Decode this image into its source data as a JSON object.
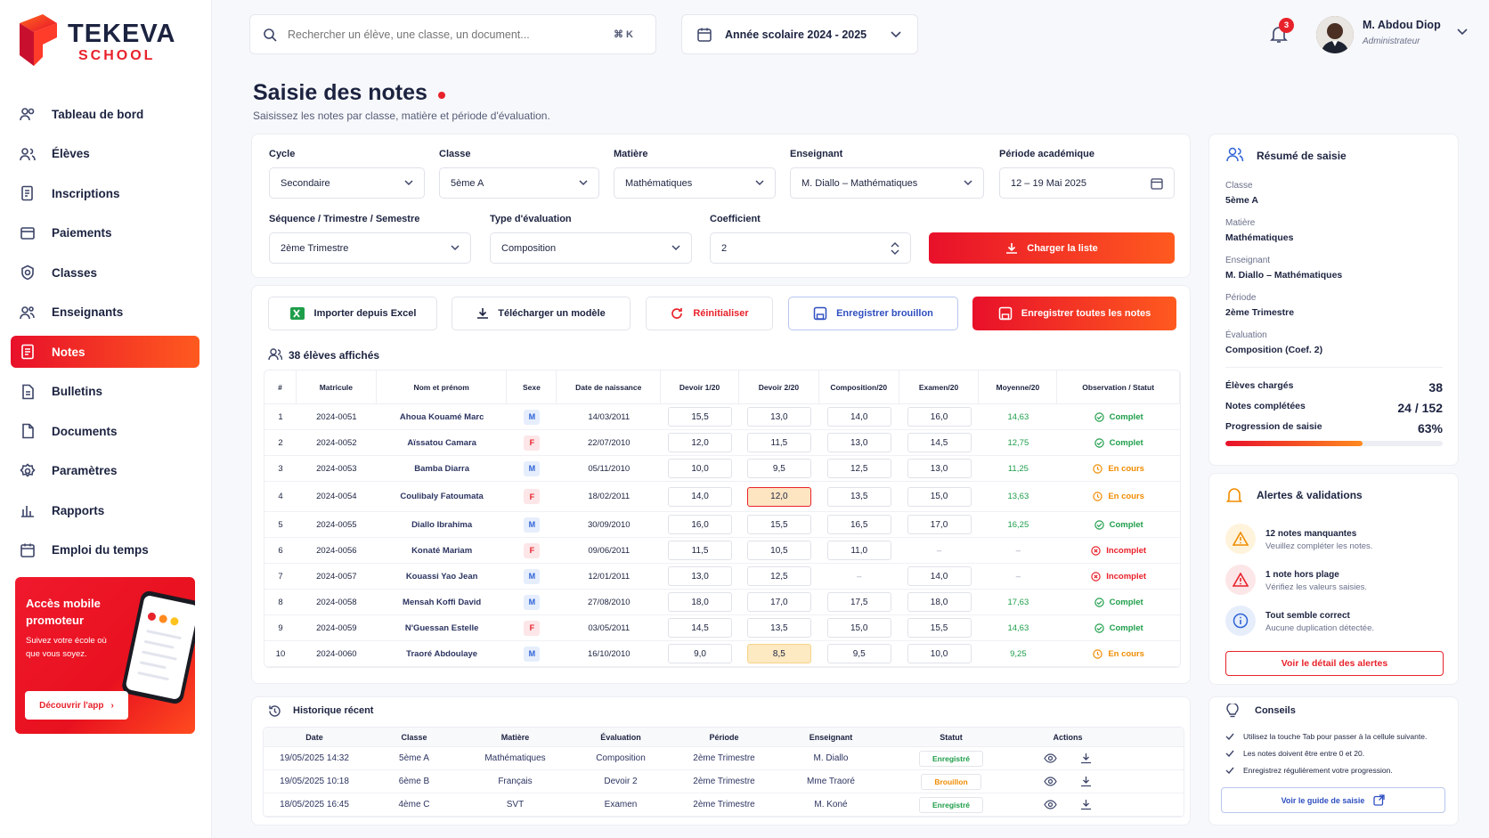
{
  "brand": {
    "name": "TEKEVA",
    "sub": "SCHOOL"
  },
  "nav": [
    {
      "label": "Tableau de bord",
      "icon": "dashboard-icon"
    },
    {
      "label": "Élèves",
      "icon": "students-icon"
    },
    {
      "label": "Inscriptions",
      "icon": "enrollment-icon"
    },
    {
      "label": "Paiements",
      "icon": "payments-icon"
    },
    {
      "label": "Classes",
      "icon": "classes-icon"
    },
    {
      "label": "Enseignants",
      "icon": "teachers-icon"
    },
    {
      "label": "Notes",
      "icon": "notes-icon",
      "active": true
    },
    {
      "label": "Bulletins",
      "icon": "bulletins-icon"
    },
    {
      "label": "Documents",
      "icon": "documents-icon"
    },
    {
      "label": "Paramètres",
      "icon": "settings-icon"
    },
    {
      "label": "Rapports",
      "icon": "reports-icon"
    },
    {
      "label": "Emploi du temps",
      "icon": "calendar-icon"
    }
  ],
  "promo": {
    "title": "Accès mobile promoteur",
    "text": "Suivez votre école où que vous soyez.",
    "button": "Découvrir l'app"
  },
  "search": {
    "placeholder": "Rechercher un élève, une classe, un document...",
    "shortcut": "⌘ K"
  },
  "year": {
    "label": "Année scolaire 2024 - 2025"
  },
  "notifications": {
    "count": "3"
  },
  "user": {
    "name": "M. Abdou Diop",
    "role": "Administrateur"
  },
  "page": {
    "title": "Saisie des notes",
    "subtitle": "Saisissez les notes par classe, matière et période d'évaluation."
  },
  "filters": {
    "cycle": {
      "label": "Cycle",
      "value": "Secondaire"
    },
    "classe": {
      "label": "Classe",
      "value": "5ème A"
    },
    "matiere": {
      "label": "Matière",
      "value": "Mathématiques"
    },
    "enseignant": {
      "label": "Enseignant",
      "value": "M. Diallo – Mathématiques"
    },
    "periode": {
      "label": "Période académique",
      "value": "12 – 19 Mai 2025"
    },
    "sequence": {
      "label": "Séquence / Trimestre / Semestre",
      "value": "2ème Trimestre"
    },
    "type": {
      "label": "Type d'évaluation",
      "value": "Composition"
    },
    "coef": {
      "label": "Coefficient",
      "value": "2"
    },
    "load": "Charger la liste"
  },
  "actions": {
    "import": "Importer depuis Excel",
    "template": "Télécharger un modèle",
    "reset": "Réinitialiser",
    "draft": "Enregistrer brouillon",
    "save_all": "Enregistrer toutes les notes"
  },
  "count_label": "38 élèves affichés",
  "table": {
    "headers": [
      "#",
      "Matricule",
      "Nom et prénom",
      "Sexe",
      "Date de naissance",
      "Devoir 1\n/20",
      "Devoir 2\n/20",
      "Composition\n/20",
      "Examen\n/20",
      "Moyenne\n/20",
      "Observation / Statut"
    ],
    "rows": [
      {
        "n": "1",
        "mat": "2024-0051",
        "nom": "Ahoua Kouamé Marc",
        "sexe": "M",
        "dob": "14/03/2011",
        "d1": "15,5",
        "d2": "13,0",
        "comp": "14,0",
        "exam": "16,0",
        "moy": "14,63",
        "status": "Complet",
        "st": "ok"
      },
      {
        "n": "2",
        "mat": "2024-0052",
        "nom": "Aïssatou Camara",
        "sexe": "F",
        "dob": "22/07/2010",
        "d1": "12,0",
        "d2": "11,5",
        "comp": "13,0",
        "exam": "14,5",
        "moy": "12,75",
        "status": "Complet",
        "st": "ok"
      },
      {
        "n": "3",
        "mat": "2024-0053",
        "nom": "Bamba Diarra",
        "sexe": "M",
        "dob": "05/11/2010",
        "d1": "10,0",
        "d2": "9,5",
        "comp": "12,5",
        "exam": "13,0",
        "moy": "11,25",
        "status": "En cours",
        "st": "wip"
      },
      {
        "n": "4",
        "mat": "2024-0054",
        "nom": "Coulibaly Fatoumata",
        "sexe": "F",
        "dob": "18/02/2011",
        "d1": "14,0",
        "d2": "12,0",
        "comp": "13,5",
        "exam": "15,0",
        "moy": "13,63",
        "status": "En cours",
        "st": "wip",
        "d2cls": "err"
      },
      {
        "n": "5",
        "mat": "2024-0055",
        "nom": "Diallo Ibrahima",
        "sexe": "M",
        "dob": "30/09/2010",
        "d1": "16,0",
        "d2": "15,5",
        "comp": "16,5",
        "exam": "17,0",
        "moy": "16,25",
        "status": "Complet",
        "st": "ok"
      },
      {
        "n": "6",
        "mat": "2024-0056",
        "nom": "Konaté Mariam",
        "sexe": "F",
        "dob": "09/06/2011",
        "d1": "11,5",
        "d2": "10,5",
        "comp": "11,0",
        "exam": "–",
        "moy": "–",
        "status": "Incomplet",
        "st": "ko",
        "examEmpty": true
      },
      {
        "n": "7",
        "mat": "2024-0057",
        "nom": "Kouassi Yao Jean",
        "sexe": "M",
        "dob": "12/01/2011",
        "d1": "13,0",
        "d2": "12,5",
        "comp": "–",
        "exam": "14,0",
        "moy": "–",
        "status": "Incomplet",
        "st": "ko",
        "compEmpty": true
      },
      {
        "n": "8",
        "mat": "2024-0058",
        "nom": "Mensah Koffi David",
        "sexe": "M",
        "dob": "27/08/2010",
        "d1": "18,0",
        "d2": "17,0",
        "comp": "17,5",
        "exam": "18,0",
        "moy": "17,63",
        "status": "Complet",
        "st": "ok"
      },
      {
        "n": "9",
        "mat": "2024-0059",
        "nom": "N'Guessan Estelle",
        "sexe": "F",
        "dob": "03/05/2011",
        "d1": "14,5",
        "d2": "13,5",
        "comp": "15,0",
        "exam": "15,5",
        "moy": "14,63",
        "status": "Complet",
        "st": "ok"
      },
      {
        "n": "10",
        "mat": "2024-0060",
        "nom": "Traoré Abdoulaye",
        "sexe": "M",
        "dob": "16/10/2010",
        "d1": "9,0",
        "d2": "8,5",
        "comp": "9,5",
        "exam": "10,0",
        "moy": "9,25",
        "status": "En cours",
        "st": "wip",
        "d2cls": "warn"
      }
    ]
  },
  "history": {
    "title": "Historique récent",
    "headers": [
      "Date",
      "Classe",
      "Matière",
      "Évaluation",
      "Période",
      "Enseignant",
      "Statut",
      "Actions"
    ],
    "rows": [
      {
        "date": "19/05/2025 14:32",
        "classe": "5ème A",
        "matiere": "Mathématiques",
        "eval": "Composition",
        "periode": "2ème Trimestre",
        "ens": "M. Diallo",
        "statut": "Enregistré",
        "st": "ok"
      },
      {
        "date": "19/05/2025 10:18",
        "classe": "6ème B",
        "matiere": "Français",
        "eval": "Devoir 2",
        "periode": "2ème Trimestre",
        "ens": "Mme Traoré",
        "statut": "Brouillon",
        "st": "draft"
      },
      {
        "date": "18/05/2025 16:45",
        "classe": "4ème C",
        "matiere": "SVT",
        "eval": "Examen",
        "periode": "2ème Trimestre",
        "ens": "M. Koné",
        "statut": "Enregistré",
        "st": "ok"
      }
    ]
  },
  "summary": {
    "title": "Résumé de saisie",
    "classe_l": "Classe",
    "classe": "5ème A",
    "matiere_l": "Matière",
    "matiere": "Mathématiques",
    "ens_l": "Enseignant",
    "ens": "M. Diallo – Mathématiques",
    "per_l": "Période",
    "per": "2ème Trimestre",
    "eval_l": "Évaluation",
    "eval": "Composition (Coef. 2)",
    "charges_l": "Élèves chargés",
    "charges": "38",
    "completes_l": "Notes complétées",
    "completes": "24 / 152",
    "prog_l": "Progression de saisie",
    "prog": "63%",
    "prog_value": 0.63
  },
  "alerts": {
    "title": "Alertes & validations",
    "items": [
      {
        "t": "12 notes manquantes",
        "d": "Veuillez compléter les notes."
      },
      {
        "t": "1 note hors plage",
        "d": "Vérifiez les valeurs saisies."
      },
      {
        "t": "Tout semble correct",
        "d": "Aucune duplication détectée."
      }
    ],
    "button": "Voir le détail des alertes"
  },
  "tips": {
    "title": "Conseils",
    "items": [
      "Utilisez la touche Tab pour passer à la cellule suivante.",
      "Les notes doivent être entre 0 et 20.",
      "Enregistrez régulièrement votre progression."
    ],
    "button": "Voir le guide de saisie"
  },
  "colors": {
    "accent": "#e8222b",
    "accent2": "#ff5a1f",
    "ok": "#1e9e4a",
    "warn": "#f08c00",
    "ko": "#e8222b",
    "info": "#2f63d6"
  }
}
